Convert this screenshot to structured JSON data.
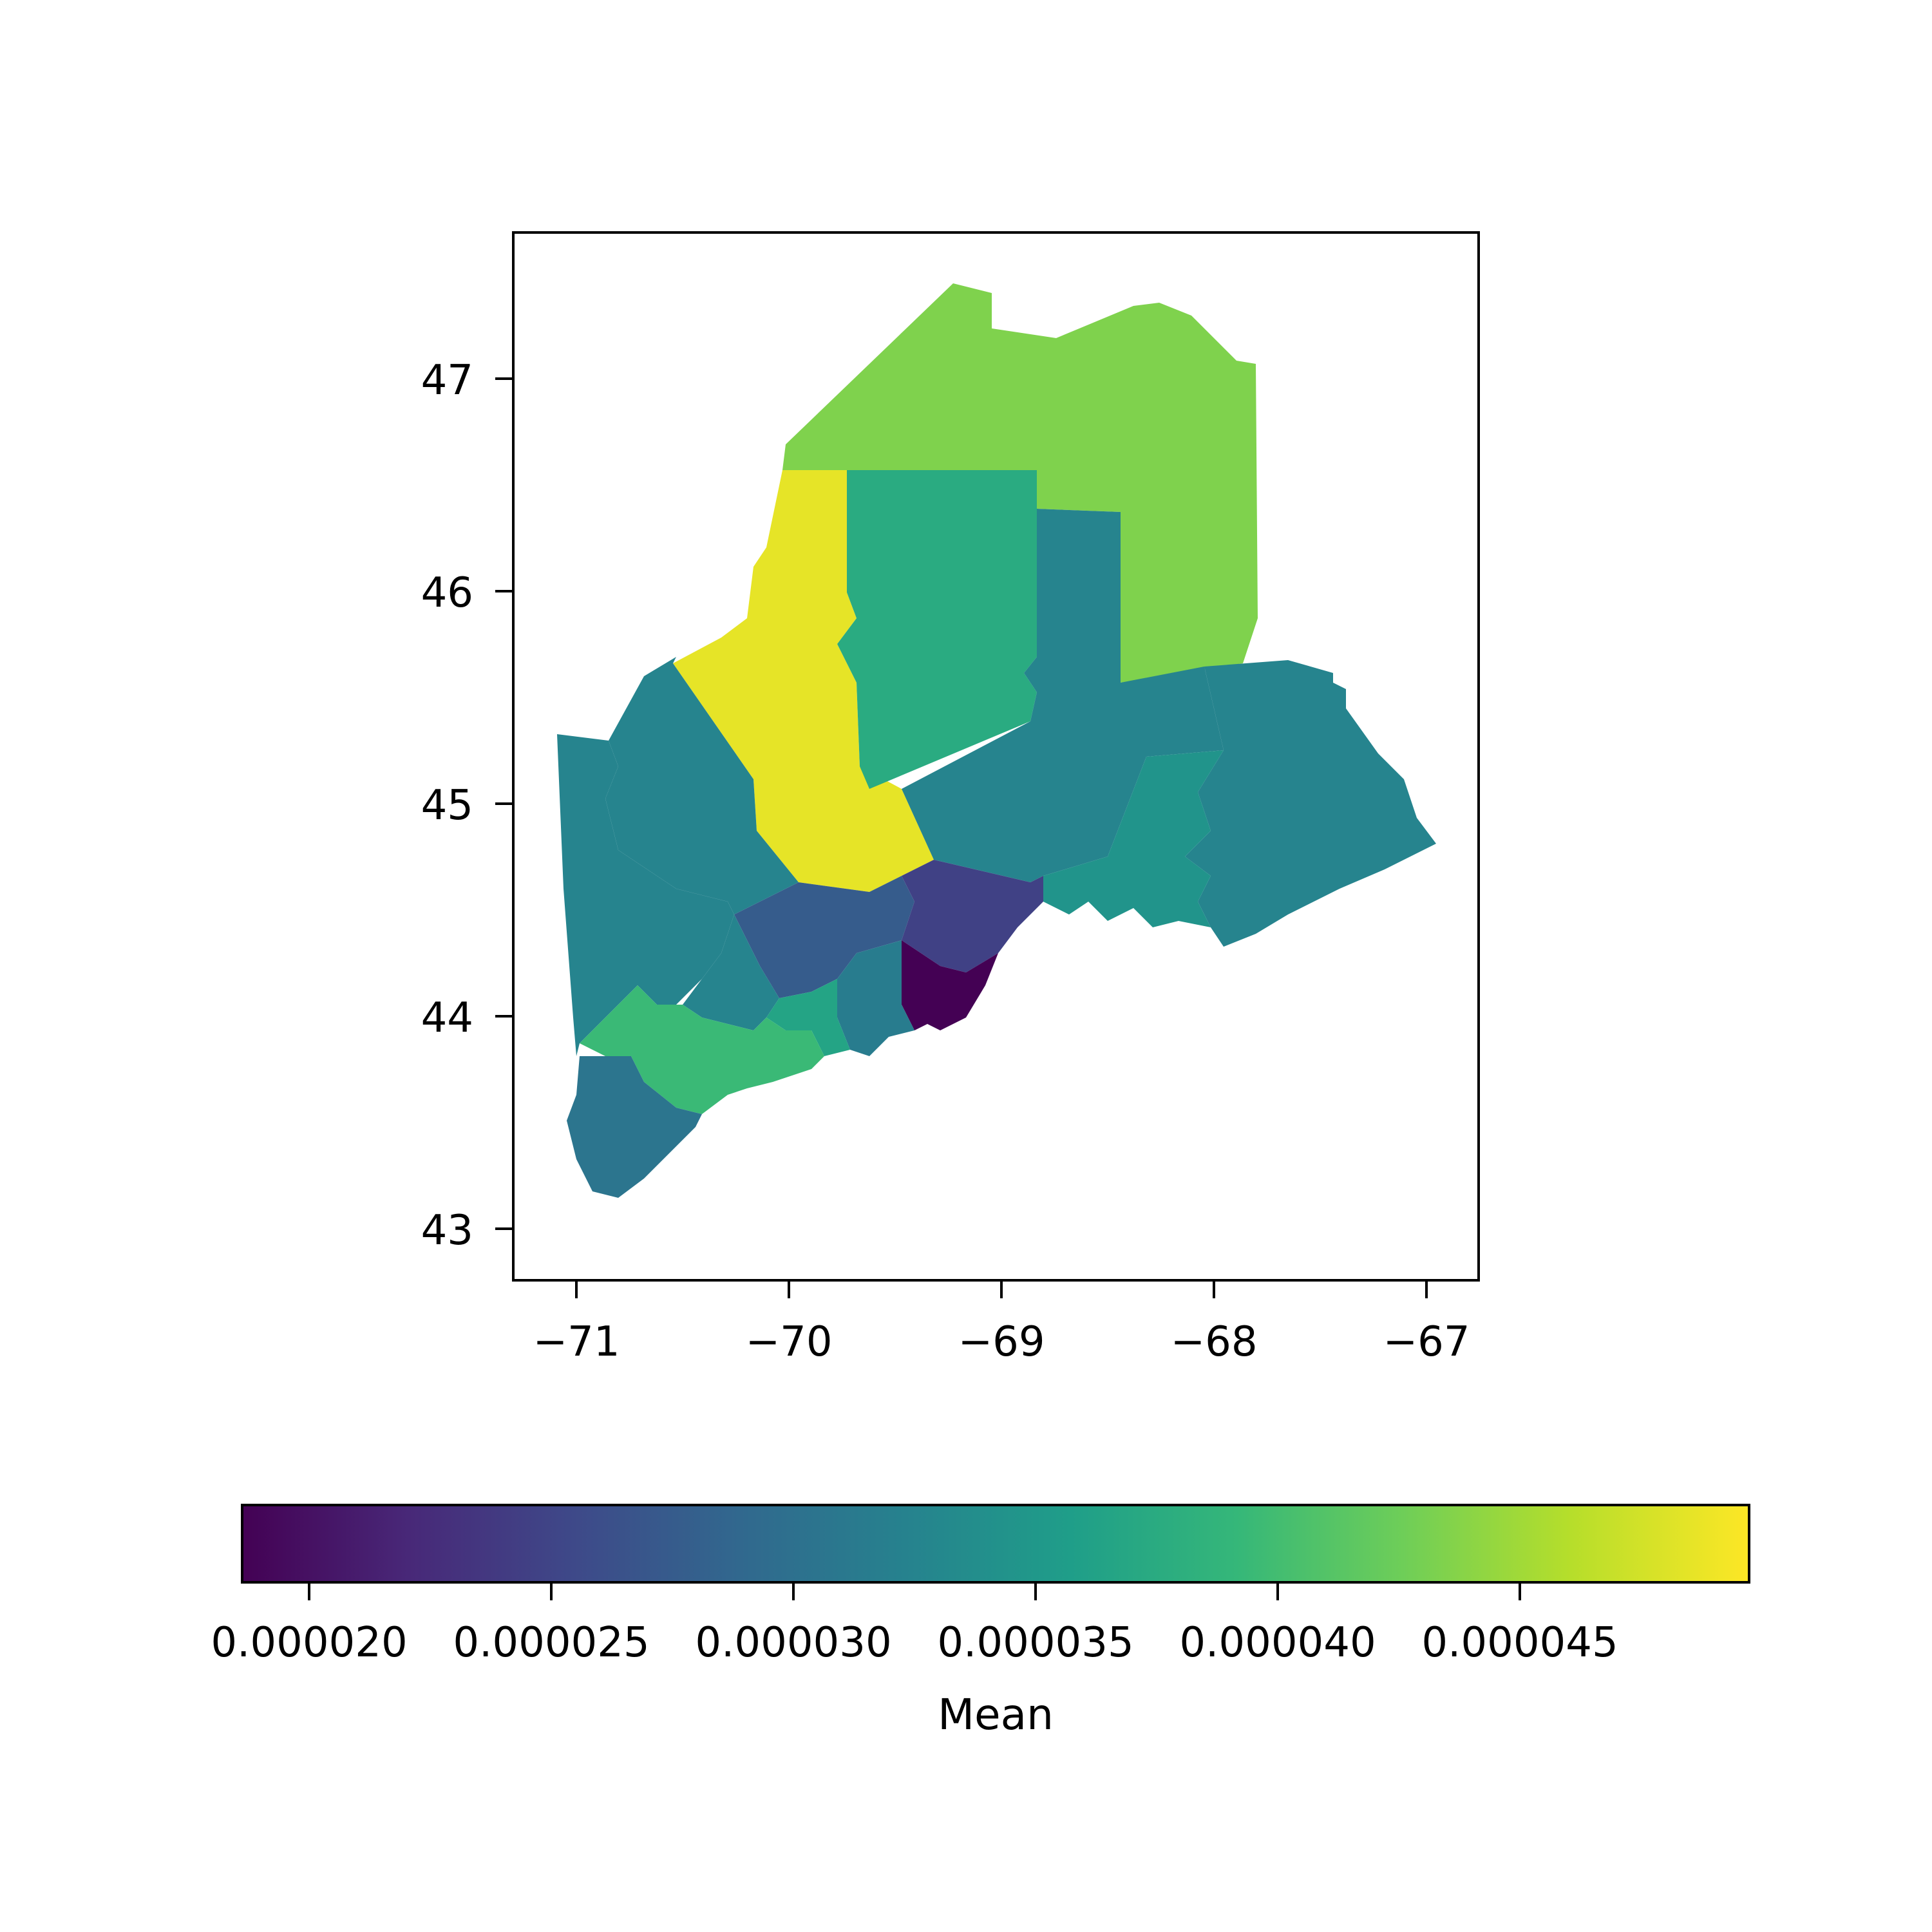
{
  "map": {
    "x_ticks": [
      "−71",
      "−70",
      "−69",
      "−68",
      "−67"
    ],
    "y_ticks": [
      "47",
      "46",
      "45",
      "44",
      "43"
    ]
  },
  "colorbar": {
    "label": "Mean",
    "ticks": [
      "0.000020",
      "0.000025",
      "0.000030",
      "0.000035",
      "0.000040",
      "0.000045"
    ],
    "colormap": [
      "#440154",
      "#482878",
      "#3e4989",
      "#31688e",
      "#26828e",
      "#1f9e89",
      "#35b779",
      "#6ece58",
      "#b5de2b",
      "#fde725"
    ]
  },
  "chart_data": {
    "type": "choropleth",
    "xlim": [
      -71.3,
      -66.75
    ],
    "ylim": [
      42.75,
      47.7
    ],
    "colorbar_range": [
      1.89e-05,
      5.01e-05
    ],
    "regions": [
      {
        "value": 4.4e-05
      },
      {
        "value": 4.9e-05
      },
      {
        "value": 3.8e-05
      },
      {
        "value": 3.3e-05
      },
      {
        "value": 3.3e-05
      },
      {
        "value": 3.5e-05
      },
      {
        "value": 3.3e-05
      },
      {
        "value": 3.3e-05
      },
      {
        "value": 2.8e-05
      },
      {
        "value": 2.5e-05
      },
      {
        "value": 1.8e-05
      },
      {
        "value": 3.2e-05
      },
      {
        "value": 3.3e-05
      },
      {
        "value": 3.7e-05
      },
      {
        "value": 4e-05
      },
      {
        "value": 3.1e-05
      }
    ]
  }
}
